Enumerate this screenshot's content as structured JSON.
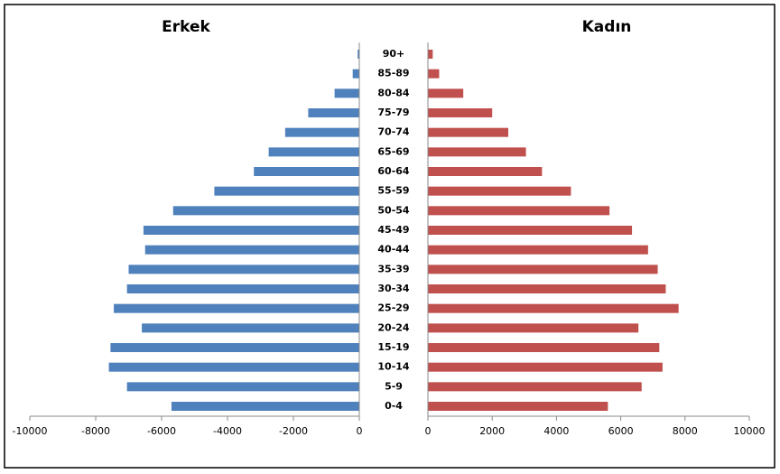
{
  "chart_data": [
    {
      "type": "bar",
      "title": "Erkek",
      "categories": [
        "0-4",
        "5-9",
        "10-14",
        "15-19",
        "20-24",
        "25-29",
        "30-34",
        "35-39",
        "40-44",
        "45-49",
        "50-54",
        "55-59",
        "60-64",
        "65-69",
        "70-74",
        "75-79",
        "80-84",
        "85-89",
        "90+"
      ],
      "values": [
        -5700,
        -7050,
        -7600,
        -7550,
        -6600,
        -7450,
        -7050,
        -7000,
        -6500,
        -6550,
        -5650,
        -4400,
        -3200,
        -2750,
        -2250,
        -1550,
        -750,
        -200,
        -50
      ],
      "color": "#4f81bd",
      "xlim": [
        -10000,
        0
      ],
      "xticks": [
        -10000,
        -8000,
        -6000,
        -4000,
        -2000,
        0
      ]
    },
    {
      "type": "bar",
      "title": "Kadın",
      "values": [
        5600,
        6650,
        7300,
        7200,
        6550,
        7800,
        7400,
        7150,
        6850,
        6350,
        5650,
        4450,
        3550,
        3050,
        2500,
        2000,
        1100,
        350,
        150
      ],
      "color": "#c0504d",
      "xlim": [
        0,
        10000
      ],
      "xticks": [
        0,
        2000,
        4000,
        6000,
        8000,
        10000
      ]
    }
  ]
}
